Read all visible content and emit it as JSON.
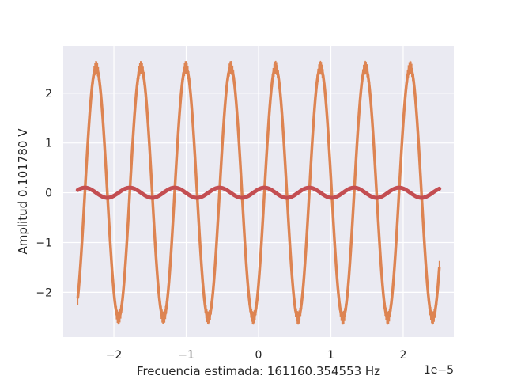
{
  "chart_data": {
    "type": "line",
    "title": "",
    "xlabel": "Frecuencia estimada: 161160.354553 Hz",
    "ylabel": "Amplitud 0.101780 V",
    "x_offset_label": "1e−5",
    "xlim": [
      -2.7e-05,
      2.7e-05
    ],
    "ylim": [
      -2.9,
      2.95
    ],
    "x_ticks": [
      {
        "value": -2e-05,
        "label": "−2"
      },
      {
        "value": -1e-05,
        "label": "−1"
      },
      {
        "value": 0,
        "label": "0"
      },
      {
        "value": 1e-05,
        "label": "1"
      },
      {
        "value": 2e-05,
        "label": "2"
      }
    ],
    "y_ticks": [
      {
        "value": -2,
        "label": "−2"
      },
      {
        "value": -1,
        "label": "−1"
      },
      {
        "value": 0,
        "label": "0"
      },
      {
        "value": 1,
        "label": "1"
      },
      {
        "value": 2,
        "label": "2"
      }
    ],
    "grid": true,
    "background": "#eaeaf2",
    "series": [
      {
        "kind": "measured-with-errorbars",
        "color": "#dd8452",
        "amplitude": 2.52,
        "frequency_hz": 161160.354553,
        "phase_rad": -0.82,
        "x_range": [
          -2.5e-05,
          2.5e-05
        ],
        "error": 0.13
      },
      {
        "kind": "fit",
        "color": "#c44e52",
        "amplitude": 0.10178,
        "frequency_hz": 161160.354553,
        "phase_rad": 0.75,
        "x_range": [
          -2.5e-05,
          2.5e-05
        ]
      }
    ]
  }
}
